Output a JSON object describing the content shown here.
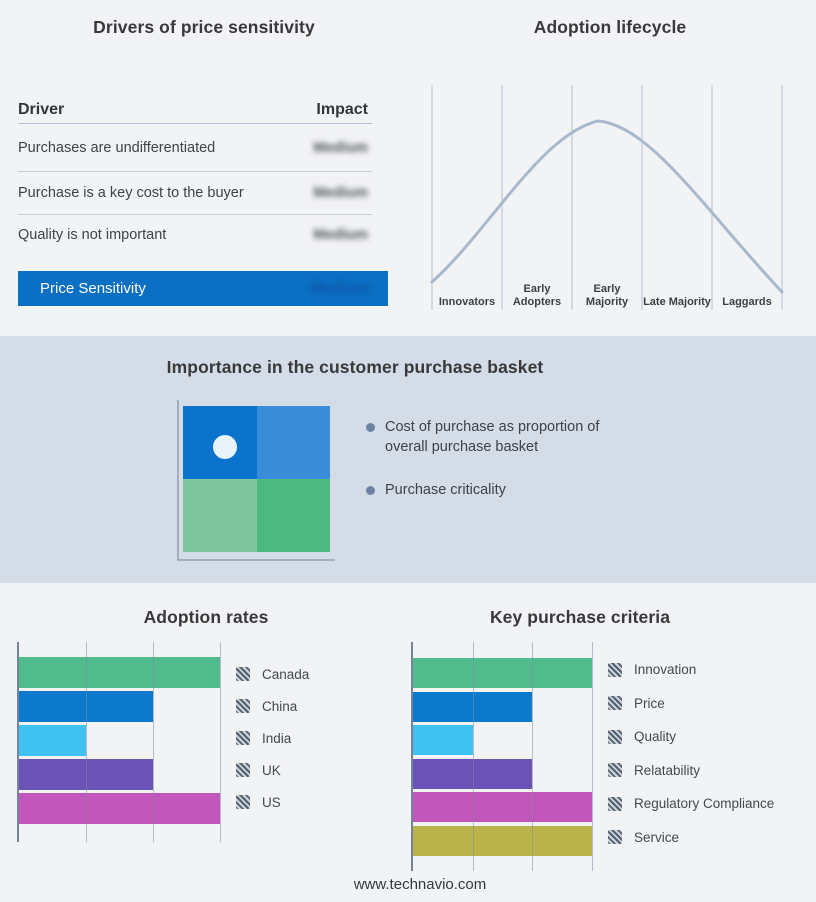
{
  "page": {
    "background": "#f2f3f5",
    "band_background": "#d4dce7",
    "footer": "www.technavio.com"
  },
  "drivers": {
    "title": "Drivers of price sensitivity",
    "columns": {
      "driver": "Driver",
      "impact": "Impact"
    },
    "rows": [
      {
        "driver": "Purchases are undifferentiated",
        "impact": "Medium"
      },
      {
        "driver": "Purchase is a key cost to the buyer",
        "impact": "Medium"
      },
      {
        "driver": "Quality is not important",
        "impact": "Medium"
      }
    ],
    "highlight": {
      "driver": "Price Sensitivity",
      "impact": "Medium",
      "color": "#0b6fc4"
    },
    "impact_values_blurred": true
  },
  "basket": {
    "title": "Importance in the customer purchase basket",
    "bullets": [
      "Cost of purchase as proportion of overall purchase basket",
      "Purchase criticality"
    ],
    "quadrant_colors": {
      "top_left": "#0a73cc",
      "top_right": "#3a8ed9",
      "bottom_left": "#80c4a0",
      "bottom_right": "#4cb981"
    },
    "marker": {
      "shape": "white-dot",
      "quadrant": "top_left"
    }
  },
  "chart_data": [
    {
      "id": "adoption_lifecycle",
      "type": "line",
      "title": "Adoption lifecycle",
      "x_stages": [
        "Innovators",
        "Early Adopters",
        "Early Majority",
        "Late Majority",
        "Laggards"
      ],
      "shape": "bell-curve",
      "peak_stage": "Early Majority",
      "grid": "vertical-only",
      "curve_color": "#a9b9cd",
      "gridline_color": "#b6c1d1",
      "legend_position": "none"
    },
    {
      "id": "adoption_rates",
      "type": "bar",
      "title": "Adoption rates",
      "orientation": "horizontal",
      "categories": [
        "Canada",
        "China",
        "India",
        "UK",
        "US"
      ],
      "values": [
        3,
        2,
        1,
        2,
        3
      ],
      "xlim": [
        0,
        3
      ],
      "grid": "vertical-only",
      "legend_position": "right",
      "colors": [
        "#52bb8d",
        "#0d79cc",
        "#3fc2f2",
        "#6a52b6",
        "#c157ba"
      ]
    },
    {
      "id": "key_purchase_criteria",
      "type": "bar",
      "title": "Key purchase criteria",
      "orientation": "horizontal",
      "categories": [
        "Innovation",
        "Price",
        "Quality",
        "Relatability",
        "Regulatory Compliance",
        "Service"
      ],
      "values": [
        3,
        2,
        1,
        2,
        3,
        3
      ],
      "xlim": [
        0,
        3
      ],
      "grid": "vertical-only",
      "legend_position": "right",
      "colors": [
        "#52bb8d",
        "#0d79cc",
        "#3fc2f2",
        "#6a52b6",
        "#c157ba",
        "#b9b34a"
      ]
    }
  ]
}
